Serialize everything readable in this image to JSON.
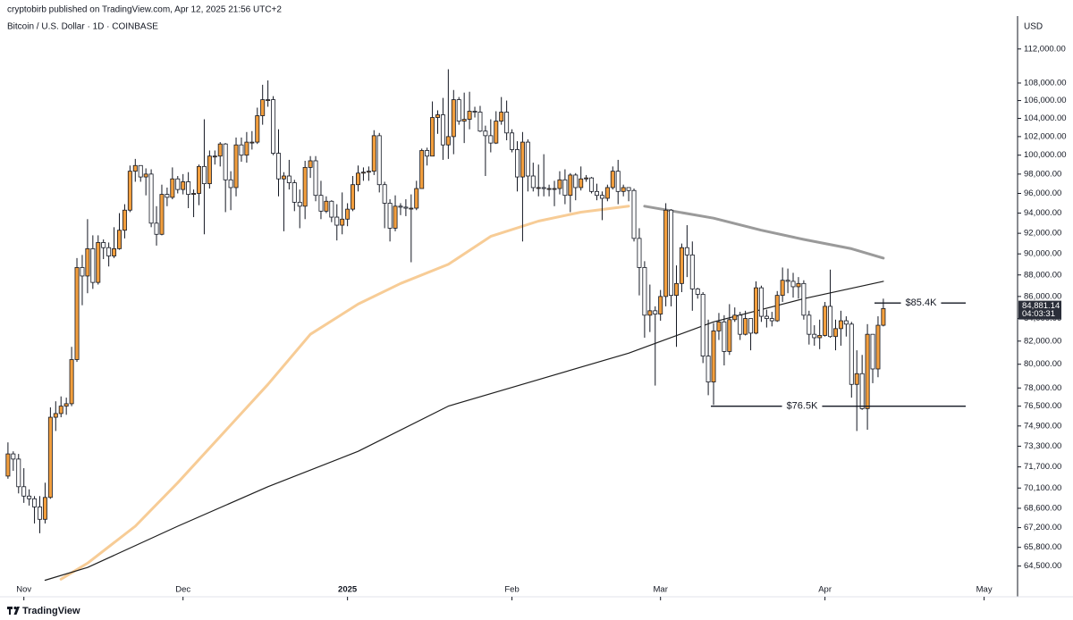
{
  "header": {
    "published": "cryptobirb published on TradingView.com, Apr 12, 2025 21:56 UTC+2",
    "brand": "TradingView"
  },
  "chart_data": {
    "type": "candlestick",
    "title": "Bitcoin / U.S. Dollar · 1D · COINBASE",
    "y_axis_label": "USD",
    "log_scale": true,
    "up_color": "#f29e3d",
    "down_color": "#ffffff",
    "edge_color": "#131722",
    "ylim": [
      63500,
      116000
    ],
    "yticks": [
      {
        "value": 64500,
        "label": "64,500.00"
      },
      {
        "value": 65800,
        "label": "65,800.00"
      },
      {
        "value": 67200,
        "label": "67,200.00"
      },
      {
        "value": 68600,
        "label": "68,600.00"
      },
      {
        "value": 70100,
        "label": "70,100.00"
      },
      {
        "value": 71700,
        "label": "71,700.00"
      },
      {
        "value": 73300,
        "label": "73,300.00"
      },
      {
        "value": 74900,
        "label": "74,900.00"
      },
      {
        "value": 76500,
        "label": "76,500.00"
      },
      {
        "value": 78000,
        "label": "78,000.00"
      },
      {
        "value": 80000,
        "label": "80,000.00"
      },
      {
        "value": 82000,
        "label": "82,000.00"
      },
      {
        "value": 84000,
        "label": "84,000.00"
      },
      {
        "value": 86000,
        "label": "86,000.00"
      },
      {
        "value": 88000,
        "label": "88,000.00"
      },
      {
        "value": 90000,
        "label": "90,000.00"
      },
      {
        "value": 92000,
        "label": "92,000.00"
      },
      {
        "value": 94000,
        "label": "94,000.00"
      },
      {
        "value": 96000,
        "label": "96,000.00"
      },
      {
        "value": 98000,
        "label": "98,000.00"
      },
      {
        "value": 100000,
        "label": "100,000.00"
      },
      {
        "value": 102000,
        "label": "102,000.00"
      },
      {
        "value": 104000,
        "label": "104,000.00"
      },
      {
        "value": 106000,
        "label": "106,000.00"
      },
      {
        "value": 108000,
        "label": "108,000.00"
      },
      {
        "value": 112000,
        "label": "112,000.00"
      }
    ],
    "xlim": [
      -1.5,
      190.3
    ],
    "xticks": [
      {
        "value": 3,
        "label": "Nov"
      },
      {
        "value": 33,
        "label": "Dec"
      },
      {
        "value": 64,
        "label": "2025"
      },
      {
        "value": 95,
        "label": "Feb"
      },
      {
        "value": 123,
        "label": "Mar"
      },
      {
        "value": 154,
        "label": "Apr"
      },
      {
        "value": 184,
        "label": "May"
      }
    ],
    "open": [
      71000,
      72700,
      72300,
      70200,
      69500,
      69300,
      68700,
      67800,
      69400,
      75600,
      75900,
      76500,
      76700,
      80400,
      88700,
      87900,
      90500,
      87300,
      91100,
      90600,
      89800,
      90500,
      92300,
      94300,
      98300,
      98900,
      97700,
      98000,
      93000,
      91900,
      95900,
      95600,
      97500,
      96400,
      97200,
      95900,
      96000,
      98800,
      97000,
      99900,
      99900,
      101200,
      97400,
      96600,
      101100,
      100000,
      101400,
      101400,
      104300,
      106100,
      106100,
      100200,
      97500,
      97800,
      97100,
      95100,
      94700,
      98700,
      99400,
      95800,
      94200,
      95200,
      93600,
      92800,
      93400,
      94400,
      96900,
      98100,
      98200,
      98300,
      102100,
      96900,
      95000,
      92500,
      94700,
      94600,
      94500,
      94500,
      96500,
      100500,
      99900,
      104100,
      104400,
      101100,
      102000,
      106100,
      103700,
      103900,
      104800,
      104700,
      102600,
      102100,
      101300,
      103700,
      104700,
      102400,
      100600,
      97700,
      101400,
      97800,
      96600,
      96600,
      96500,
      96500,
      96500,
      97400,
      95800,
      97900,
      96600,
      97500,
      97600,
      96200,
      95800,
      95500,
      96600,
      98300,
      96200,
      96600,
      96300,
      91500,
      88700,
      84300,
      84700,
      84400,
      86000,
      94300,
      86100,
      87200,
      90600,
      89900,
      86700,
      86200,
      80700,
      78500,
      82900,
      83700,
      81100,
      83900,
      84300,
      82600,
      84000,
      82700,
      86800,
      84200,
      84000,
      83800,
      86100,
      87500,
      87400,
      86900,
      87200,
      84300,
      82600,
      82300,
      82500,
      85100,
      82400,
      83100,
      83800,
      83500,
      78300,
      79200,
      76300,
      82600,
      79600,
      83400
    ],
    "high": [
      73600,
      72900,
      72700,
      71600,
      70000,
      69500,
      69500,
      70500,
      76400,
      76900,
      77300,
      77200,
      81500,
      89600,
      89900,
      93400,
      91800,
      91800,
      91400,
      91100,
      92600,
      94000,
      94900,
      98900,
      99600,
      98700,
      98600,
      98500,
      94700,
      96900,
      96600,
      98700,
      97800,
      98000,
      98200,
      96400,
      99000,
      103900,
      100500,
      100500,
      101400,
      101300,
      98300,
      101900,
      101900,
      102500,
      102600,
      105200,
      107800,
      108300,
      106500,
      102800,
      98200,
      99500,
      97400,
      96400,
      99400,
      99900,
      99900,
      97300,
      95700,
      95300,
      94900,
      96100,
      95000,
      97800,
      98900,
      98700,
      98800,
      102700,
      102400,
      97200,
      95400,
      95800,
      95000,
      95400,
      95900,
      97300,
      100700,
      100800,
      105900,
      104900,
      106300,
      109600,
      107200,
      106400,
      106900,
      107000,
      105300,
      105400,
      103200,
      103900,
      104800,
      106400,
      106000,
      102800,
      101500,
      102500,
      101700,
      99200,
      99000,
      100100,
      96900,
      97300,
      98300,
      98500,
      98100,
      98100,
      98800,
      97900,
      97700,
      97000,
      96200,
      96900,
      98800,
      99500,
      96900,
      96600,
      96500,
      92500,
      89300,
      87100,
      85100,
      86600,
      95000,
      94400,
      88900,
      91000,
      92800,
      91200,
      86800,
      86400,
      83900,
      83600,
      84500,
      84300,
      85300,
      85000,
      84600,
      84700,
      84000,
      87400,
      87000,
      84800,
      84600,
      86500,
      88700,
      88600,
      88200,
      87800,
      87500,
      84700,
      83400,
      83900,
      85500,
      88500,
      83900,
      84700,
      84200,
      83700,
      81200,
      80800,
      83500,
      82600,
      84200,
      85800
    ],
    "low": [
      70800,
      71400,
      69700,
      69000,
      68800,
      67500,
      66800,
      67500,
      69300,
      74500,
      75600,
      75800,
      76500,
      80200,
      85200,
      86300,
      86700,
      87100,
      89500,
      88800,
      89600,
      90400,
      91500,
      94100,
      97200,
      97200,
      95800,
      92600,
      90800,
      91800,
      94700,
      95400,
      96000,
      95900,
      94500,
      93600,
      94800,
      91900,
      96500,
      99000,
      98800,
      94100,
      94300,
      95700,
      99300,
      99200,
      100600,
      101200,
      103300,
      105300,
      100000,
      95700,
      92200,
      96400,
      94200,
      92500,
      93400,
      97600,
      95200,
      93400,
      94000,
      93100,
      91300,
      91900,
      92700,
      94200,
      96200,
      97300,
      97300,
      97900,
      96100,
      92500,
      91200,
      92200,
      93800,
      93700,
      89200,
      94300,
      96500,
      98900,
      99900,
      102300,
      99500,
      99600,
      100100,
      103300,
      101300,
      102800,
      104100,
      102500,
      97800,
      100300,
      101200,
      103300,
      101600,
      100300,
      96200,
      91200,
      96200,
      96200,
      95700,
      95700,
      95700,
      94700,
      95900,
      94900,
      94100,
      95300,
      96300,
      97200,
      96000,
      95300,
      93300,
      95200,
      96400,
      94900,
      95700,
      95200,
      91200,
      86100,
      82300,
      82800,
      78200,
      83800,
      85100,
      85100,
      81500,
      86400,
      87800,
      84700,
      85800,
      80100,
      77400,
      76600,
      82100,
      79900,
      80800,
      83700,
      82100,
      82500,
      81200,
      82600,
      83700,
      83200,
      83300,
      83700,
      85500,
      86300,
      85900,
      85800,
      83900,
      81700,
      81600,
      81300,
      82400,
      82300,
      81200,
      81600,
      82400,
      77200,
      74500,
      76200,
      74600,
      78400,
      78900,
      83300
    ],
    "close": [
      72700,
      72300,
      70200,
      69500,
      69300,
      68700,
      67800,
      69400,
      75600,
      75900,
      76500,
      76700,
      80400,
      88700,
      87900,
      90500,
      87300,
      91100,
      90600,
      89800,
      90500,
      92300,
      94300,
      98300,
      98900,
      97700,
      98000,
      93000,
      91900,
      95900,
      95600,
      97500,
      96400,
      97200,
      95900,
      96000,
      98800,
      97000,
      99900,
      99900,
      101200,
      97400,
      96600,
      101100,
      100000,
      101400,
      101400,
      104300,
      106100,
      106100,
      100200,
      97500,
      97800,
      97100,
      95100,
      94700,
      98700,
      99400,
      95800,
      94200,
      95200,
      93600,
      92800,
      93400,
      94400,
      96900,
      98100,
      98200,
      98300,
      102100,
      96900,
      95000,
      92500,
      94700,
      94600,
      94500,
      94500,
      96500,
      100500,
      99900,
      104100,
      104400,
      101100,
      102000,
      106100,
      103700,
      103900,
      104800,
      104700,
      102600,
      102100,
      101300,
      103700,
      104700,
      102400,
      100600,
      97700,
      101400,
      97800,
      96600,
      96600,
      96500,
      96500,
      96500,
      97400,
      95800,
      97900,
      96600,
      97500,
      97600,
      96200,
      95800,
      95500,
      96600,
      98300,
      96200,
      96600,
      96300,
      91500,
      88700,
      84300,
      84700,
      84400,
      86000,
      94300,
      86100,
      87200,
      90600,
      89900,
      86700,
      86200,
      80700,
      78500,
      82900,
      83700,
      81100,
      83900,
      84300,
      82600,
      84000,
      82700,
      86800,
      84200,
      84000,
      83800,
      86100,
      87500,
      87400,
      86900,
      87200,
      84300,
      82600,
      82300,
      82500,
      85100,
      82400,
      83100,
      83800,
      83500,
      78300,
      79200,
      76300,
      82600,
      79600,
      83400,
      84900
    ],
    "lines": [
      {
        "color": "#f7cc96",
        "width": 3,
        "x": [
          10,
          15,
          24,
          32,
          49,
          57,
          66,
          74,
          83,
          91,
          100,
          108,
          117
        ],
        "values": [
          63600,
          64700,
          67300,
          70500,
          78300,
          82600,
          85300,
          87200,
          89000,
          91700,
          93200,
          94100,
          94700
        ]
      },
      {
        "color": "#9a9a9a",
        "width": 3,
        "x": [
          120,
          133,
          142,
          150,
          159,
          165
        ],
        "values": [
          94700,
          93500,
          92300,
          91400,
          90500,
          89600
        ]
      },
      {
        "color": "#1e1e1e",
        "width": 1.2,
        "x": [
          7,
          15,
          32,
          49,
          66,
          83,
          100,
          117,
          133,
          150,
          165
        ],
        "values": [
          63530,
          64400,
          67300,
          70200,
          72900,
          76500,
          78700,
          80950,
          83700,
          85800,
          87400
        ]
      }
    ],
    "annotations": [
      {
        "label": "$85.4K",
        "value": 85400
      },
      {
        "label": "$76.5K",
        "value": 76500
      }
    ],
    "last_price": {
      "value": 84881.14,
      "label": "84,881.14"
    },
    "countdown": "04:03:31"
  }
}
